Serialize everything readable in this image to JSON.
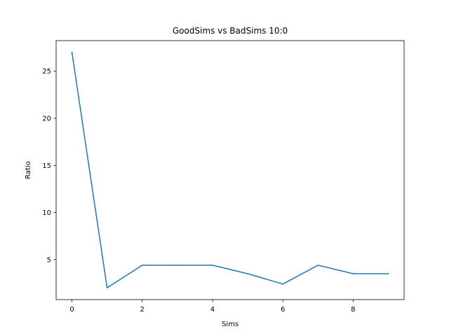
{
  "chart_data": {
    "type": "line",
    "title": "GoodSims vs BadSims 10:0",
    "xlabel": "Sims",
    "ylabel": "Ratio",
    "x": [
      0,
      1,
      2,
      3,
      4,
      5,
      6,
      7,
      8,
      9
    ],
    "series": [
      {
        "name": "ratio",
        "color": "#1f77b4",
        "values": [
          27.0,
          2.0,
          4.4,
          4.4,
          4.4,
          3.5,
          2.4,
          4.4,
          3.5,
          3.5
        ]
      }
    ],
    "xlim": [
      -0.45,
      9.45
    ],
    "ylim": [
      0.75,
      28.25
    ],
    "xticks": [
      0,
      2,
      4,
      6,
      8
    ],
    "yticks": [
      5,
      10,
      15,
      20,
      25
    ],
    "grid": false,
    "legend": "none"
  }
}
